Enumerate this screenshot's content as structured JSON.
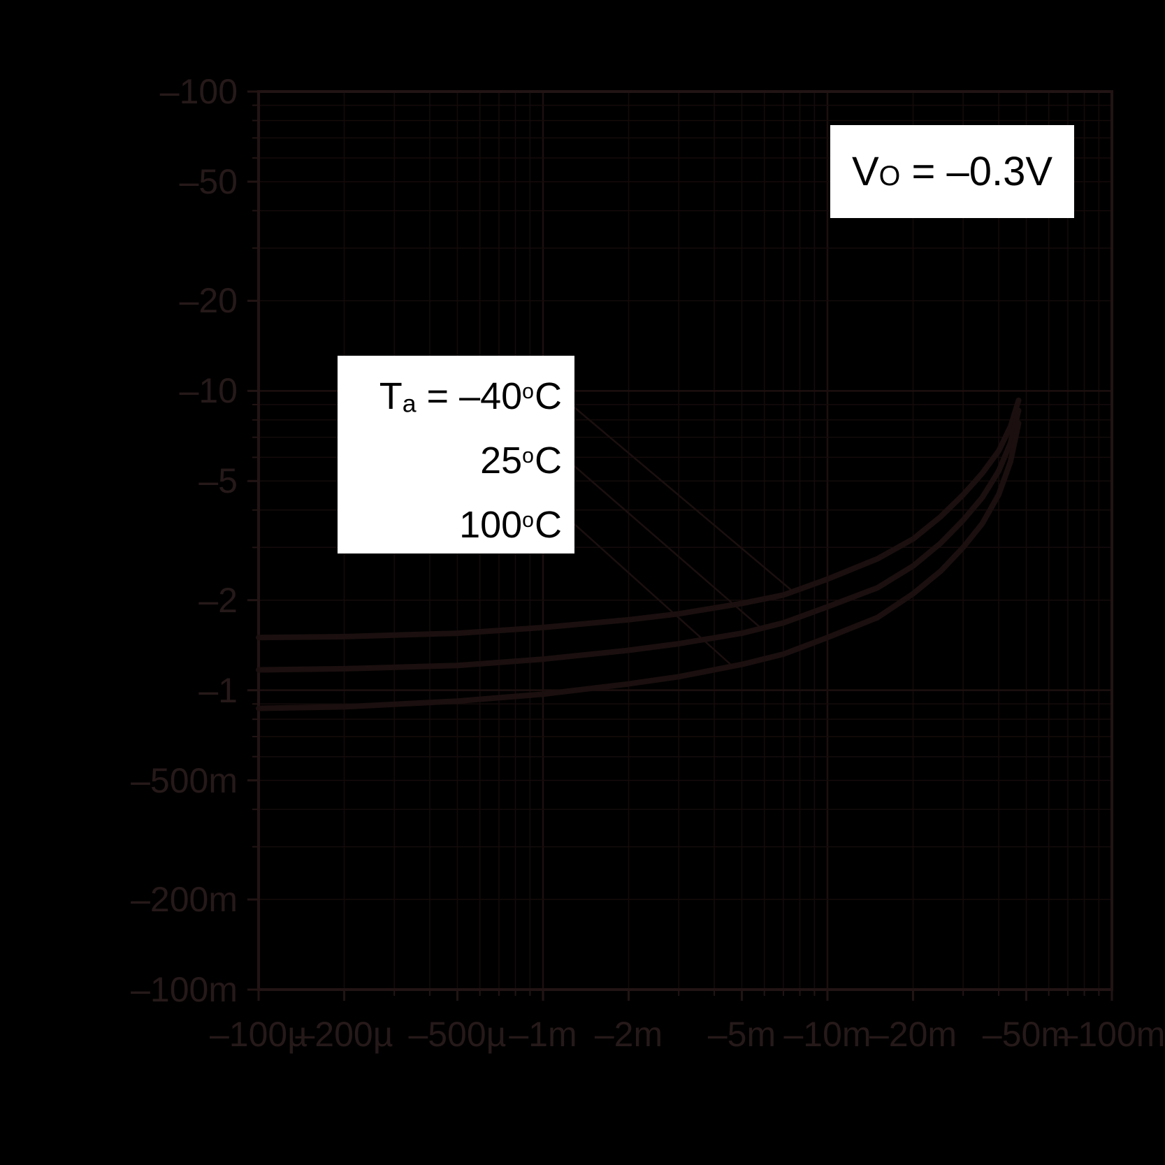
{
  "page": {
    "background": "#000000"
  },
  "colors": {
    "background": "#000000",
    "grid_minor": "#150b0b",
    "grid_major": "#1d0f0f",
    "frame": "#221414",
    "tick_label": "#261919",
    "curve": "#1b0f0f",
    "leader_line": "#1b0f0f",
    "legend_bg": "#ffffff",
    "legend_text": "#000000"
  },
  "annotation_box": {
    "v": "V",
    "v_sub": "O",
    "value": " = –0.3V"
  },
  "legend_box": {
    "t": "T",
    "t_sub": "a",
    "eq": " = ",
    "rows": [
      {
        "num": "–40",
        "deg": "o",
        "unit": "C"
      },
      {
        "num": "25",
        "deg": "o",
        "unit": "C"
      },
      {
        "num": "100",
        "deg": "o",
        "unit": "C"
      }
    ]
  },
  "chart_data": {
    "type": "line",
    "title": "",
    "x_axis": {
      "scale": "log",
      "range": [
        -0.0001,
        -0.1
      ],
      "tick_labels": [
        "–100µ",
        "–200µ",
        "–500µ",
        "–1m",
        "–2m",
        "–5m",
        "–10m",
        "–20m",
        "–50m",
        "–100m"
      ],
      "tick_values": [
        -0.0001,
        -0.0002,
        -0.0005,
        -0.001,
        -0.002,
        -0.005,
        -0.01,
        -0.02,
        -0.05,
        -0.1
      ],
      "grid": true
    },
    "y_axis": {
      "scale": "log",
      "range": [
        -0.1,
        -100
      ],
      "tick_labels": [
        "–100",
        "–50",
        "–20",
        "–10",
        "–5",
        "–2",
        "–1",
        "–500m",
        "–200m",
        "–100m"
      ],
      "tick_values": [
        -100,
        -50,
        -20,
        -10,
        -5,
        -2,
        -1,
        -0.5,
        -0.2,
        -0.1
      ],
      "grid": true
    },
    "annotation": "VO = –0.3V",
    "legend": [
      "Ta = –40°C",
      "25°C",
      "100°C"
    ],
    "legend_position": "upper-left-inside",
    "series": [
      {
        "name": "Ta = –40°C",
        "points": [
          [
            -0.0001,
            -1.5
          ],
          [
            -0.0002,
            -1.51
          ],
          [
            -0.0005,
            -1.55
          ],
          [
            -0.001,
            -1.62
          ],
          [
            -0.002,
            -1.72
          ],
          [
            -0.003,
            -1.8
          ],
          [
            -0.005,
            -1.95
          ],
          [
            -0.007,
            -2.08
          ],
          [
            -0.01,
            -2.35
          ],
          [
            -0.015,
            -2.75
          ],
          [
            -0.02,
            -3.2
          ],
          [
            -0.025,
            -3.8
          ],
          [
            -0.03,
            -4.5
          ],
          [
            -0.035,
            -5.3
          ],
          [
            -0.04,
            -6.3
          ],
          [
            -0.044,
            -7.6
          ],
          [
            -0.047,
            -9.3
          ]
        ]
      },
      {
        "name": "25°C",
        "points": [
          [
            -0.0001,
            -1.17
          ],
          [
            -0.0002,
            -1.18
          ],
          [
            -0.0005,
            -1.21
          ],
          [
            -0.001,
            -1.27
          ],
          [
            -0.002,
            -1.36
          ],
          [
            -0.003,
            -1.43
          ],
          [
            -0.005,
            -1.55
          ],
          [
            -0.007,
            -1.68
          ],
          [
            -0.01,
            -1.9
          ],
          [
            -0.015,
            -2.2
          ],
          [
            -0.02,
            -2.6
          ],
          [
            -0.025,
            -3.1
          ],
          [
            -0.03,
            -3.7
          ],
          [
            -0.035,
            -4.4
          ],
          [
            -0.04,
            -5.4
          ],
          [
            -0.044,
            -6.7
          ],
          [
            -0.047,
            -8.6
          ]
        ]
      },
      {
        "name": "100°C",
        "points": [
          [
            -0.0001,
            -0.87
          ],
          [
            -0.0002,
            -0.88
          ],
          [
            -0.0005,
            -0.92
          ],
          [
            -0.001,
            -0.97
          ],
          [
            -0.002,
            -1.05
          ],
          [
            -0.003,
            -1.11
          ],
          [
            -0.005,
            -1.22
          ],
          [
            -0.007,
            -1.32
          ],
          [
            -0.01,
            -1.5
          ],
          [
            -0.015,
            -1.75
          ],
          [
            -0.02,
            -2.1
          ],
          [
            -0.025,
            -2.5
          ],
          [
            -0.03,
            -3.0
          ],
          [
            -0.035,
            -3.6
          ],
          [
            -0.04,
            -4.5
          ],
          [
            -0.044,
            -5.8
          ],
          [
            -0.047,
            -7.8
          ]
        ]
      }
    ]
  }
}
